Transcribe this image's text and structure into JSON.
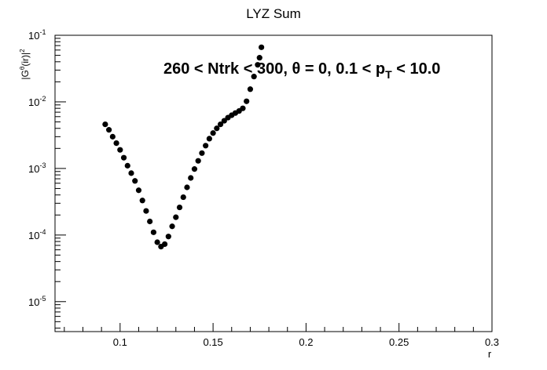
{
  "chart_data": {
    "type": "scatter",
    "title": "LYZ Sum",
    "xlabel": "r",
    "ylabel_parts": {
      "pre": "|G",
      "sup1": "θ",
      "mid": "(ir)|",
      "sup2": "2"
    },
    "annotation_parts": {
      "main": "260 < Ntrk < 300, θ = 0, 0.1 < p",
      "sub": "T",
      "tail": " < 10.0"
    },
    "xlim": [
      0.065,
      0.3
    ],
    "ylim_log10": [
      -5.45,
      -1
    ],
    "yscale": "log",
    "grid": false,
    "x_ticks": [
      {
        "v": 0.1,
        "label": "0.1"
      },
      {
        "v": 0.15,
        "label": "0.15"
      },
      {
        "v": 0.2,
        "label": "0.2"
      },
      {
        "v": 0.25,
        "label": "0.25"
      },
      {
        "v": 0.3,
        "label": "0.3"
      }
    ],
    "y_ticks": [
      {
        "exp": -5,
        "base": "10",
        "power": "-5"
      },
      {
        "exp": -4,
        "base": "10",
        "power": "-4"
      },
      {
        "exp": -3,
        "base": "10",
        "power": "-3"
      },
      {
        "exp": -2,
        "base": "10",
        "power": "-2"
      },
      {
        "exp": -1,
        "base": "10",
        "power": "-1"
      }
    ],
    "series": [
      {
        "marker_color": "#000000",
        "points": [
          [
            0.092,
            0.0046
          ],
          [
            0.094,
            0.0038
          ],
          [
            0.096,
            0.003
          ],
          [
            0.098,
            0.0024
          ],
          [
            0.1,
            0.0019
          ],
          [
            0.102,
            0.00145
          ],
          [
            0.104,
            0.0011
          ],
          [
            0.106,
            0.00085
          ],
          [
            0.108,
            0.00065
          ],
          [
            0.11,
            0.00047
          ],
          [
            0.112,
            0.00033
          ],
          [
            0.114,
            0.00023
          ],
          [
            0.116,
            0.00016
          ],
          [
            0.118,
            0.00011
          ],
          [
            0.12,
            7.8e-05
          ],
          [
            0.122,
            6.7e-05
          ],
          [
            0.124,
            7.3e-05
          ],
          [
            0.126,
            9.5e-05
          ],
          [
            0.128,
            0.000135
          ],
          [
            0.13,
            0.000185
          ],
          [
            0.132,
            0.00026
          ],
          [
            0.134,
            0.00037
          ],
          [
            0.136,
            0.00052
          ],
          [
            0.138,
            0.00072
          ],
          [
            0.14,
            0.00098
          ],
          [
            0.142,
            0.0013
          ],
          [
            0.144,
            0.0017
          ],
          [
            0.146,
            0.0022
          ],
          [
            0.148,
            0.0028
          ],
          [
            0.15,
            0.0034
          ],
          [
            0.152,
            0.004
          ],
          [
            0.154,
            0.0046
          ],
          [
            0.156,
            0.0052
          ],
          [
            0.158,
            0.0058
          ],
          [
            0.16,
            0.0063
          ],
          [
            0.162,
            0.0068
          ],
          [
            0.164,
            0.0073
          ],
          [
            0.166,
            0.008
          ],
          [
            0.168,
            0.0102
          ],
          [
            0.17,
            0.0155
          ],
          [
            0.172,
            0.024
          ],
          [
            0.174,
            0.036
          ],
          [
            0.175,
            0.046
          ],
          [
            0.176,
            0.066
          ]
        ]
      }
    ]
  }
}
